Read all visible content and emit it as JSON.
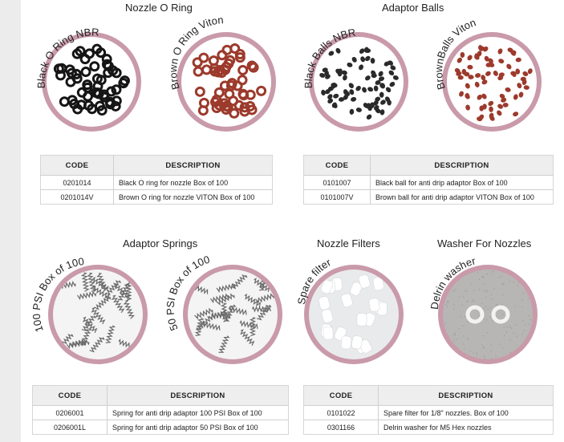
{
  "sections": {
    "nozzle_o_ring": "Nozzle O Ring",
    "adaptor_balls": "Adaptor Balls",
    "adaptor_springs": "Adaptor Springs",
    "nozzle_filters": "Nozzle Filters",
    "washer_for_nozzles": "Washer For Nozzles"
  },
  "labels": {
    "black_o_ring": "Black O Ring NBR",
    "brown_o_ring": "Brown O Ring Viton",
    "black_balls": "Black Balls NBR",
    "brown_balls": "BrownBalls Viton",
    "psi_100": "100 PSI Box of 100",
    "psi_50": "50 PSI Box of 100",
    "spare_filter": "Spare filter",
    "delrin_washer": "Delrin washer"
  },
  "table_headers": {
    "code": "CODE",
    "description": "DESCRIPTION"
  },
  "tables": {
    "o_ring": [
      {
        "code": "0201014",
        "description": "Black O ring for nozzle Box of 100"
      },
      {
        "code": "0201014V",
        "description": "Brown O ring for nozzle VITON Box of 100"
      }
    ],
    "balls": [
      {
        "code": "0101007",
        "description": "Black ball for anti drip adaptor Box of 100"
      },
      {
        "code": "0101007V",
        "description": "Brown ball for anti drip adaptor VITON Box of 100"
      }
    ],
    "springs": [
      {
        "code": "0206001",
        "description": "Spring for anti drip adaptor 100 PSI Box of 100"
      },
      {
        "code": "0206001L",
        "description": "Spring for anti drip adaptor 50 PSI Box of 100"
      }
    ],
    "filters_washers": [
      {
        "code": "0101022",
        "description": "Spare filter for 1/8\" nozzles. Box of 100"
      },
      {
        "code": "0301166",
        "description": "Delrin washer for M5 Hex nozzles"
      }
    ]
  }
}
